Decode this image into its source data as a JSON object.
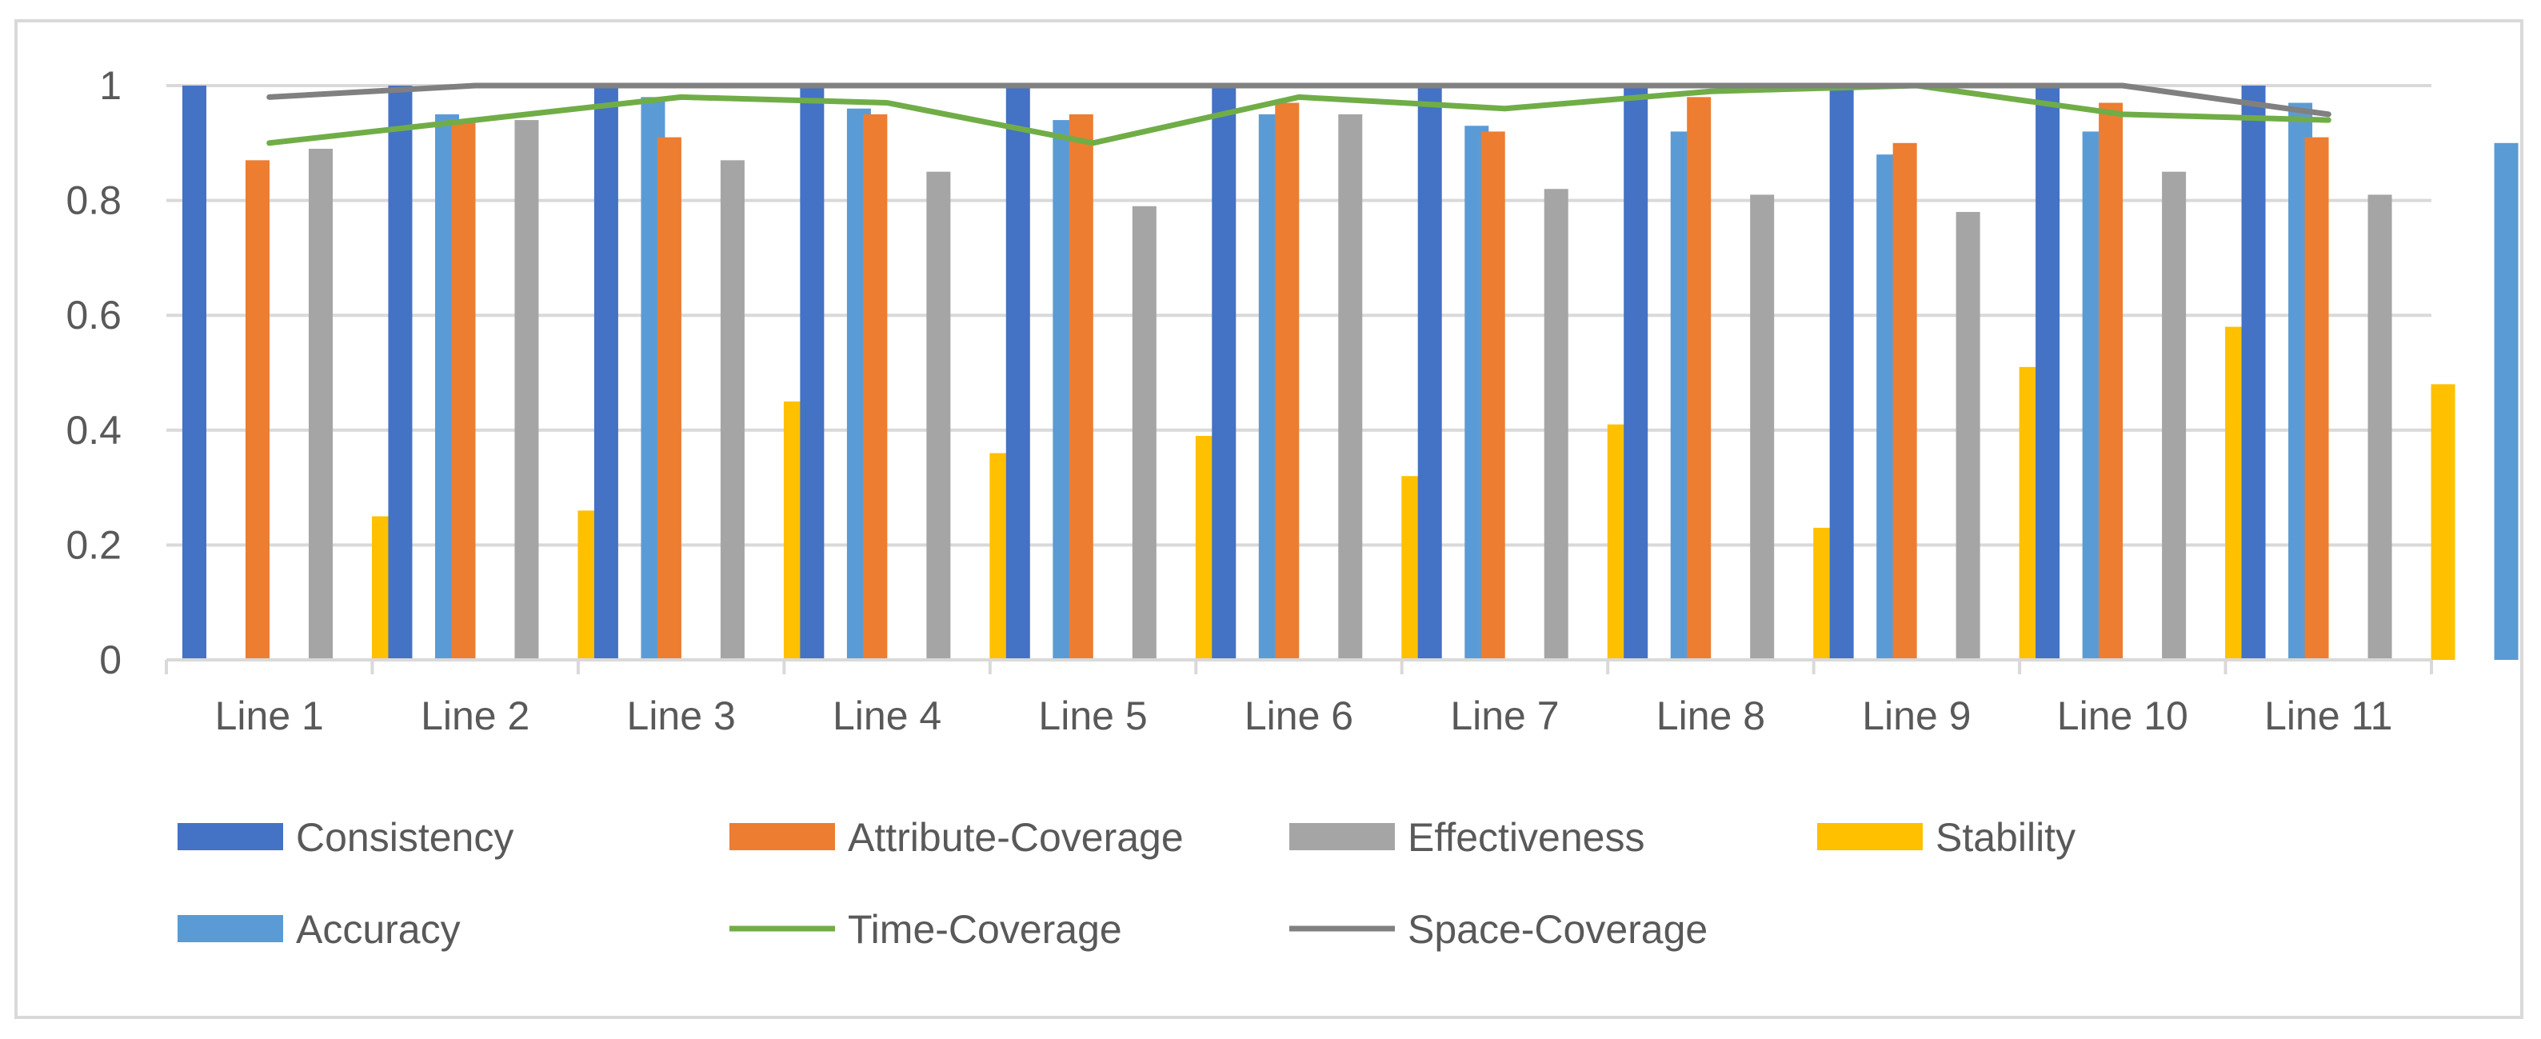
{
  "chart_data": {
    "type": "bar",
    "title": "",
    "xlabel": "",
    "ylabel": "",
    "ylim": [
      0,
      1
    ],
    "yticks": [
      0,
      0.2,
      0.4,
      0.6,
      0.8,
      1
    ],
    "ytick_labels": [
      "0",
      "0.2",
      "0.4",
      "0.6",
      "0.8",
      "1"
    ],
    "grid": true,
    "legend_position": "bottom",
    "categories": [
      "Line 1",
      "Line 2",
      "Line 3",
      "Line 4",
      "Line 5",
      "Line 6",
      "Line 7",
      "Line 8",
      "Line 9",
      "Line 10",
      "Line 11"
    ],
    "series": [
      {
        "name": "Consistency",
        "kind": "bar",
        "color": "#4472C4",
        "values": [
          1,
          1,
          1,
          1,
          1,
          1,
          1,
          1,
          1,
          1,
          1
        ]
      },
      {
        "name": "Attribute-Coverage",
        "kind": "bar",
        "color": "#ED7D31",
        "values": [
          0.87,
          0.94,
          0.91,
          0.95,
          0.95,
          0.97,
          0.92,
          0.98,
          0.9,
          0.97,
          0.91
        ]
      },
      {
        "name": "Effectiveness",
        "kind": "bar",
        "color": "#A5A5A5",
        "values": [
          0.89,
          0.94,
          0.87,
          0.85,
          0.79,
          0.95,
          0.82,
          0.81,
          0.78,
          0.85,
          0.81
        ]
      },
      {
        "name": "Stability",
        "kind": "bar",
        "color": "#FFC000",
        "values": [
          0.25,
          0.26,
          0.45,
          0.36,
          0.39,
          0.32,
          0.41,
          0.23,
          0.51,
          0.58,
          0.48
        ]
      },
      {
        "name": "Accuracy",
        "kind": "bar",
        "color": "#5B9BD5",
        "values": [
          0.95,
          0.98,
          0.96,
          0.94,
          0.95,
          0.93,
          0.92,
          0.88,
          0.92,
          0.97,
          0.9
        ]
      },
      {
        "name": "Time-Coverage",
        "kind": "line",
        "color": "#70AD47",
        "values": [
          0.9,
          0.94,
          0.98,
          0.97,
          0.9,
          0.98,
          0.96,
          0.99,
          1.0,
          0.95,
          0.94
        ]
      },
      {
        "name": "Space-Coverage",
        "kind": "line",
        "color": "#808080",
        "values": [
          0.98,
          1.0,
          1.0,
          1.0,
          1.0,
          1.0,
          1.0,
          1.0,
          1.0,
          1.0,
          0.95
        ]
      }
    ]
  }
}
